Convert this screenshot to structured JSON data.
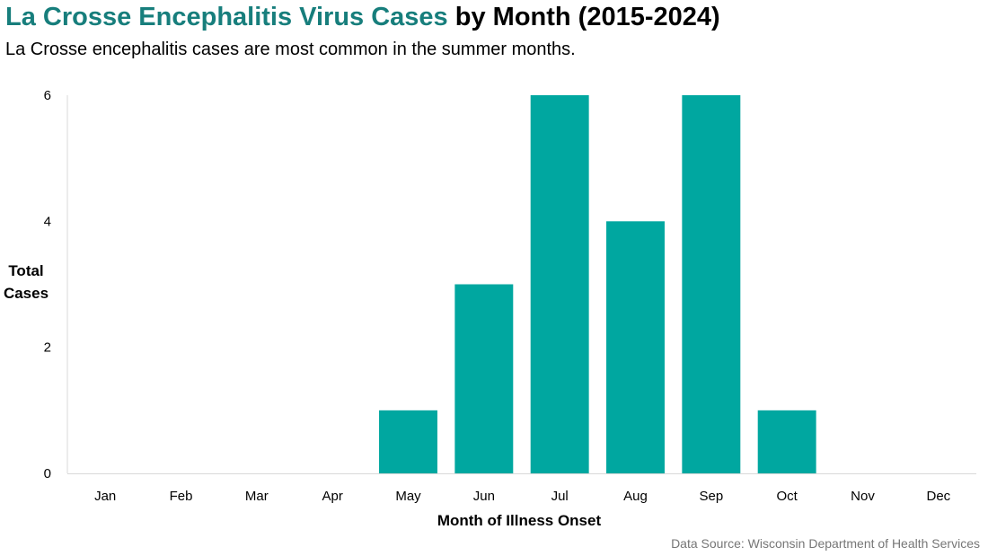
{
  "header": {
    "title_highlight": "La Crosse Encephalitis Virus Cases",
    "title_rest": " by Month (2015-2024)",
    "subtitle": "La Crosse encephalitis cases are most common in the summer months."
  },
  "footer": {
    "source": "Data Source: Wisconsin Department of Health Services"
  },
  "colors": {
    "bar": "#00a7a0",
    "title_accent": "#177e7c",
    "axis": "#d9d9d9"
  },
  "chart_data": {
    "type": "bar",
    "title": "La Crosse Encephalitis Virus Cases by Month (2015-2024)",
    "subtitle": "La Crosse encephalitis cases are most common in the summer months.",
    "xlabel": "Month of Illness Onset",
    "ylabel_lines": [
      "Total",
      "Cases"
    ],
    "categories": [
      "Jan",
      "Feb",
      "Mar",
      "Apr",
      "May",
      "Jun",
      "Jul",
      "Aug",
      "Sep",
      "Oct",
      "Nov",
      "Dec"
    ],
    "values": [
      0,
      0,
      0,
      0,
      1,
      3,
      6,
      4,
      6,
      1,
      0,
      0
    ],
    "ylim": [
      0,
      6
    ],
    "yticks": [
      0,
      2,
      4,
      6
    ],
    "grid": false,
    "legend": "none"
  }
}
